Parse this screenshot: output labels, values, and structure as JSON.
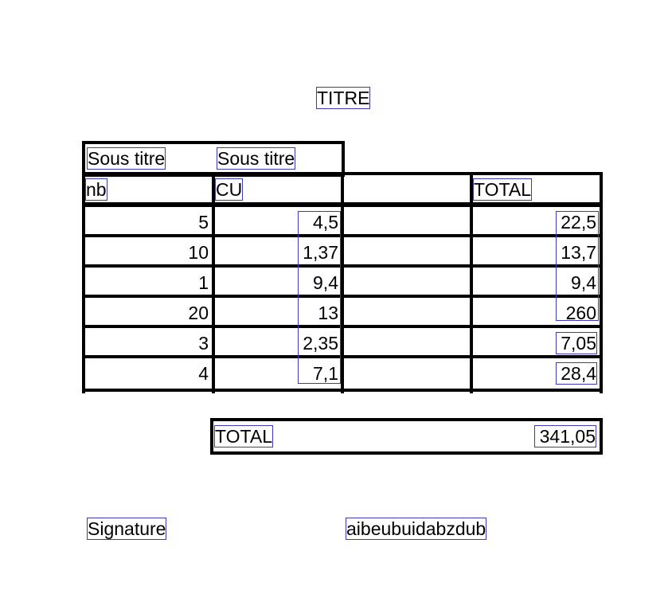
{
  "title": "TITRE",
  "subtitles": [
    "Sous titre",
    "Sous titre"
  ],
  "table": {
    "headers": {
      "nb": "nb",
      "cu": "CU",
      "empty": "",
      "total": "TOTAL"
    },
    "rows": [
      {
        "nb": "5",
        "cu": "4,5",
        "total": "22,5"
      },
      {
        "nb": "10",
        "cu": "1,37",
        "total": "13,7"
      },
      {
        "nb": "1",
        "cu": "9,4",
        "total": "9,4"
      },
      {
        "nb": "20",
        "cu": "13",
        "total": "260"
      },
      {
        "nb": "3",
        "cu": "2,35",
        "total": "7,05"
      },
      {
        "nb": "4",
        "cu": "7,1",
        "total": "28,4"
      }
    ]
  },
  "grand_total": {
    "label": "TOTAL",
    "value": "341,05"
  },
  "footer": {
    "signature": "Signature",
    "text": "aibeubuidabzdub"
  }
}
